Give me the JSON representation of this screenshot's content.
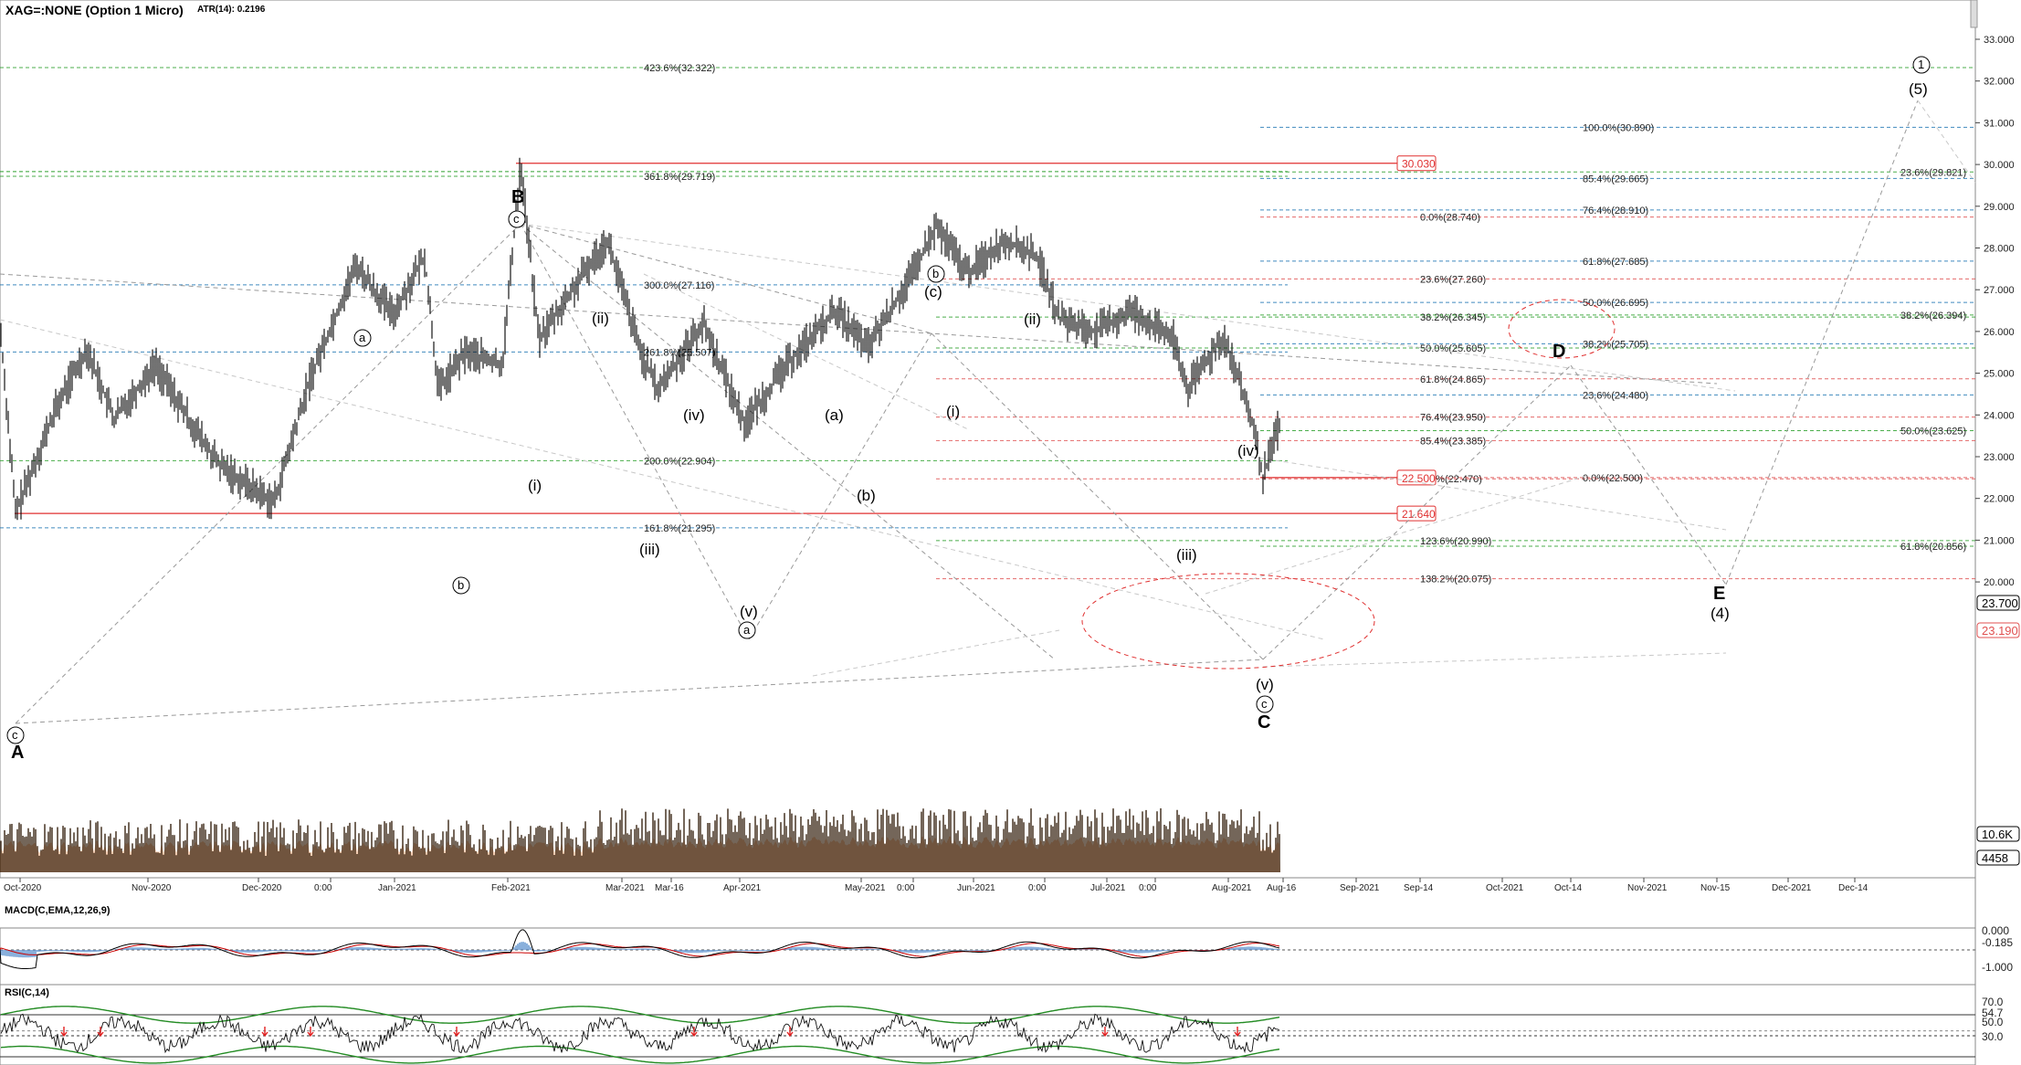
{
  "app": {
    "symbol_title": "XAG=:NONE (Option 1 Micro)",
    "atr_label": "ATR(14): 0.2196",
    "macd_label": "MACD(C,EMA,12,26,9)",
    "rsi_label": "RSI(C,14)"
  },
  "colors": {
    "price": "#000000",
    "fib_blue": "#1f77b4",
    "fib_green": "#2ca02c",
    "fib_red": "#e05050",
    "volume": "#2a1400",
    "volume_avg": "#e8a070",
    "macd_line": "#000000",
    "signal_line": "#cc0000",
    "histogram": "#4a86c8",
    "rsi_band": "#228b22"
  },
  "price_axis": {
    "labels": [
      "33.000",
      "32.000",
      "31.000",
      "30.000",
      "29.000",
      "28.000",
      "27.000",
      "26.000",
      "25.000",
      "24.000",
      "23.000",
      "22.000",
      "21.000",
      "20.000"
    ],
    "current_tags": [
      {
        "text": "23.700",
        "color": "#000000"
      },
      {
        "text": "23.190",
        "color": "#e05050"
      },
      {
        "text": "10.6K",
        "color": "#000000"
      },
      {
        "text": "4458",
        "color": "#000000"
      }
    ]
  },
  "time_axis": {
    "labels": [
      "Oct-2020",
      "Nov-2020",
      "Dec-2020",
      "0:00",
      "Jan-2021",
      "Feb-2021",
      "Mar-2021",
      "Mar-16",
      "Apr-2021",
      "May-2021",
      "0:00",
      "Jun-2021",
      "0:00",
      "Jul-2021",
      "0:00",
      "Aug-2021",
      "Aug-16",
      "Sep-2021",
      "Sep-14",
      "Oct-2021",
      "Oct-14",
      "Nov-2021",
      "Nov-15",
      "Dec-2021",
      "Dec-14"
    ]
  },
  "macd_axis": {
    "labels": [
      "0.000",
      "-0.185",
      "-1.000"
    ]
  },
  "rsi_axis": {
    "labels": [
      "70.0",
      "54.7",
      "50.0",
      "30.0"
    ]
  },
  "price_tags": [
    {
      "text": "30.030"
    },
    {
      "text": "22.500"
    },
    {
      "text": "21.640"
    }
  ],
  "fib_levels": [
    {
      "text": "423.6%(32.322)"
    },
    {
      "text": "361.8%(29.719)"
    },
    {
      "text": "300.0%(27.116)"
    },
    {
      "text": "261.8%(25.507)"
    },
    {
      "text": "200.0%(22.904)"
    },
    {
      "text": "161.8%(21.295)"
    },
    {
      "text": "100.0%(30.890)"
    },
    {
      "text": "85.4%(29.665)"
    },
    {
      "text": "76.4%(28.910)"
    },
    {
      "text": "0.0%(28.740)"
    },
    {
      "text": "61.8%(27.685)"
    },
    {
      "text": "23.6%(27.260)"
    },
    {
      "text": "50.0%(26.695)"
    },
    {
      "text": "38.2%(26.345)"
    },
    {
      "text": "38.2%(25.705)"
    },
    {
      "text": "50.0%(25.605)"
    },
    {
      "text": "61.8%(24.865)"
    },
    {
      "text": "23.6%(24.480)"
    },
    {
      "text": "76.4%(23.950)"
    },
    {
      "text": "85.4%(23.385)"
    },
    {
      "text": ".0%(22.470)"
    },
    {
      "text": "0.0%(22.500)"
    },
    {
      "text": "123.6%(20.990)"
    },
    {
      "text": "138.2%(20.075)"
    },
    {
      "text": "23.6%(29.821)"
    },
    {
      "text": "38.2%(26.394)"
    },
    {
      "text": "50.0%(23.625)"
    },
    {
      "text": "61.8%(20.856)"
    }
  ],
  "wave_labels": [
    {
      "text": "A"
    },
    {
      "text": "B"
    },
    {
      "text": "C"
    },
    {
      "text": "D"
    },
    {
      "text": "E"
    },
    {
      "text": "(4)"
    },
    {
      "text": "(5)"
    },
    {
      "text": "1"
    },
    {
      "text": "c"
    },
    {
      "text": "a"
    },
    {
      "text": "b"
    },
    {
      "text": "(i)"
    },
    {
      "text": "(ii)"
    },
    {
      "text": "(iii)"
    },
    {
      "text": "(iv)"
    },
    {
      "text": "(v)"
    },
    {
      "text": "(a)"
    },
    {
      "text": "(b)"
    },
    {
      "text": "(c)"
    }
  ],
  "chart_data": {
    "type": "line",
    "title": "XAG=:NONE (Option 1 Micro)",
    "subtitle": "ATR(14): 0.2196",
    "price_series": {
      "x": [
        "Sep-2020",
        "Oct-2020",
        "Nov-2020",
        "Nov-2020",
        "Dec-2020",
        "Jan-2021",
        "Feb-2021",
        "Feb-2021",
        "Mar-2021",
        "Mar-2021",
        "Apr-2021",
        "Apr-2021",
        "May-2021",
        "May-2021",
        "Jun-2021",
        "Jun-2021",
        "Jul-2021",
        "Jul-2021",
        "Aug-2021",
        "Aug-2021"
      ],
      "y": [
        26.2,
        21.64,
        25.6,
        22.6,
        21.9,
        27.6,
        30.03,
        25.8,
        28.2,
        24.6,
        23.8,
        26.5,
        28.0,
        27.4,
        28.3,
        25.7,
        26.6,
        24.6,
        25.9,
        22.5
      ]
    },
    "ylim": [
      19.6,
      33.3
    ],
    "right_axis": true,
    "last_price": 23.7,
    "grid": false,
    "indicators": [
      "Volume",
      "MACD(C,EMA,12,26,9)",
      "RSI(C,14)"
    ]
  }
}
